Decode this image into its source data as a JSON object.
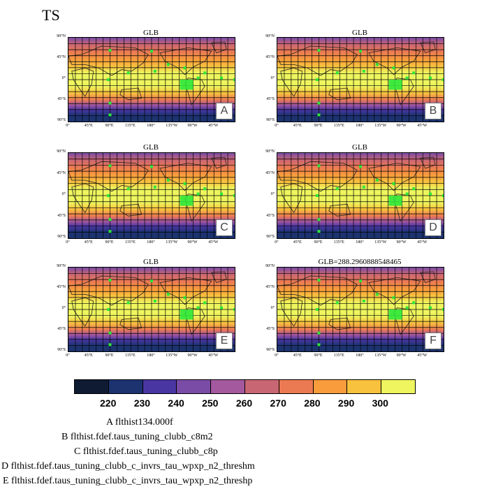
{
  "title": "TS",
  "panels": [
    {
      "title": "GLB",
      "tag": "A"
    },
    {
      "title": "GLB",
      "tag": "B"
    },
    {
      "title": "GLB",
      "tag": "C"
    },
    {
      "title": "GLB",
      "tag": "D"
    },
    {
      "title": "GLB",
      "tag": "E"
    },
    {
      "title": "GLB=288.2960888548465",
      "tag": "F"
    }
  ],
  "lat_labels": [
    "90°N",
    "45°N",
    "0°",
    "45°S",
    "90°S"
  ],
  "lon_labels": [
    "0°",
    "45°E",
    "90°E",
    "135°E",
    "180°",
    "135°W",
    "90°W",
    "45°W"
  ],
  "colorbar": {
    "colors": [
      "#0f1b33",
      "#1c3370",
      "#4a36a3",
      "#7a4ca6",
      "#a4589e",
      "#c96674",
      "#eb7a52",
      "#f99c3c",
      "#f8c13e",
      "#eef55e"
    ],
    "labels": [
      "220",
      "230",
      "240",
      "250",
      "260",
      "270",
      "280",
      "290",
      "300"
    ]
  },
  "legend": [
    "A  flthist134.000f",
    "B  flthist.fdef.taus_tuning_clubb_c8m2",
    "C  flthist.fdef.taus_tuning_clubb_c8p",
    "D  flthist.fdef.taus_tuning_clubb_c_invrs_tau_wpxp_n2_threshm",
    "E  flthist.fdef.taus_tuning_clubb_c_invrs_tau_wpxp_n2_threshp"
  ]
}
